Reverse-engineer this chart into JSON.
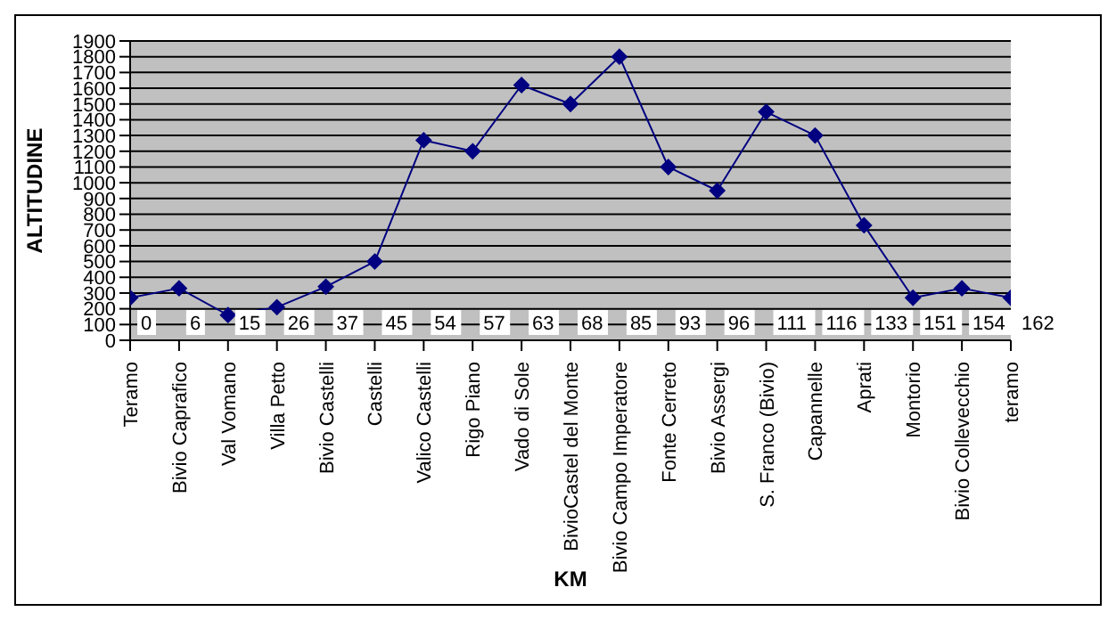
{
  "chart_data": {
    "type": "line",
    "xlabel": "KM",
    "ylabel": "ALTITUDINE",
    "categories": [
      "Teramo",
      "Bivio Caprafico",
      "Val Vomano",
      "Villa Petto",
      "Bivio Castelli",
      "Castelli",
      "Valico Castelli",
      "Rigo Piano",
      "Vado di Sole",
      "BivioCastel del Monte",
      "Bivio Campo Imperatore",
      "Fonte Cerreto",
      "Bivio Assergi",
      "S. Franco (Bivio)",
      "Capannelle",
      "Aprati",
      "Montorio",
      "Bivio Collevecchio",
      "teramo"
    ],
    "series": [
      {
        "color": "#000080",
        "values": [
          270,
          330,
          160,
          210,
          340,
          500,
          1270,
          1200,
          1620,
          1500,
          1800,
          1100,
          950,
          1450,
          1300,
          730,
          270,
          330,
          270
        ]
      }
    ],
    "ylim": [
      0,
      1900
    ],
    "yticks": [
      0,
      100,
      200,
      300,
      400,
      500,
      600,
      700,
      800,
      900,
      1000,
      1100,
      1200,
      1300,
      1400,
      1500,
      1600,
      1700,
      1800,
      1900
    ],
    "grid": "y",
    "marker": "diamond",
    "line_style": "solid",
    "annotations": [
      "0",
      "6",
      "15",
      "26",
      "37",
      "45",
      "54",
      "57",
      "63",
      "68",
      "85",
      "93",
      "96",
      "111",
      "116",
      "133",
      "151",
      "154",
      "162"
    ]
  }
}
